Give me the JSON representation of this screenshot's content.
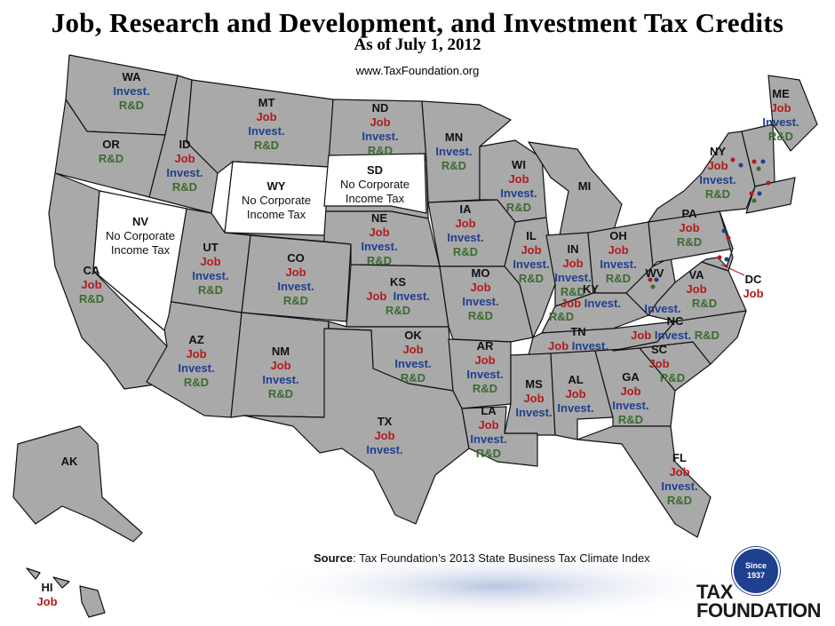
{
  "title": "Job, Research and Development, and Investment Tax Credits",
  "subtitle": "As of July 1, 2012",
  "website": "www.TaxFoundation.org",
  "source_label": "Source",
  "source_text": ": Tax Foundation’s 2013 State Business Tax Climate Index",
  "logo": {
    "seal_line1": "Since",
    "seal_line2": "1937",
    "word1": "TAX",
    "word2": "FOUNDATION"
  },
  "colors": {
    "job": "#b31b1b",
    "invest": "#1f3f8f",
    "rd": "#3b6b2f",
    "state_fill": "#a9a9a9",
    "no_tax_fill": "#ffffff"
  },
  "states": {
    "WA": {
      "abbr": "WA",
      "c1": "Invest.",
      "c2": "R&D"
    },
    "OR": {
      "abbr": "OR",
      "c1": "R&D"
    },
    "CA": {
      "abbr": "CA",
      "c1": "Job",
      "c2": "R&D"
    },
    "NV": {
      "abbr": "NV",
      "n1": "No Corporate",
      "n2": "Income Tax"
    },
    "ID": {
      "abbr": "ID",
      "c1": "Job",
      "c2": "Invest.",
      "c3": "R&D"
    },
    "MT": {
      "abbr": "MT",
      "c1": "Job",
      "c2": "Invest.",
      "c3": "R&D"
    },
    "WY": {
      "abbr": "WY",
      "n1": "No Corporate",
      "n2": "Income Tax"
    },
    "UT": {
      "abbr": "UT",
      "c1": "Job",
      "c2": "Invest.",
      "c3": "R&D"
    },
    "AZ": {
      "abbr": "AZ",
      "c1": "Job",
      "c2": "Invest.",
      "c3": "R&D"
    },
    "CO": {
      "abbr": "CO",
      "c1": "Job",
      "c2": "Invest.",
      "c3": "R&D"
    },
    "NM": {
      "abbr": "NM",
      "c1": "Job",
      "c2": "Invest.",
      "c3": "R&D"
    },
    "ND": {
      "abbr": "ND",
      "c1": "Job",
      "c2": "Invest.",
      "c3": "R&D"
    },
    "SD": {
      "abbr": "SD",
      "n1": "No Corporate",
      "n2": "Income Tax"
    },
    "NE": {
      "abbr": "NE",
      "c1": "Job",
      "c2": "Invest.",
      "c3": "R&D"
    },
    "KS": {
      "abbr": "KS",
      "c1": "Job",
      "c2": "Invest.",
      "c3": "R&D"
    },
    "OK": {
      "abbr": "OK",
      "c1": "Job",
      "c2": "Invest.",
      "c3": "R&D"
    },
    "TX": {
      "abbr": "TX",
      "c1": "Job",
      "c2": "Invest."
    },
    "MN": {
      "abbr": "MN",
      "c1": "Invest.",
      "c2": "R&D"
    },
    "IA": {
      "abbr": "IA",
      "c1": "Job",
      "c2": "Invest.",
      "c3": "R&D"
    },
    "MO": {
      "abbr": "MO",
      "c1": "Job",
      "c2": "Invest.",
      "c3": "R&D"
    },
    "AR": {
      "abbr": "AR",
      "c1": "Job",
      "c2": "Invest.",
      "c3": "R&D"
    },
    "LA": {
      "abbr": "LA",
      "c1": "Job",
      "c2": "Invest.",
      "c3": "R&D"
    },
    "WI": {
      "abbr": "WI",
      "c1": "Job",
      "c2": "Invest.",
      "c3": "R&D"
    },
    "IL": {
      "abbr": "IL",
      "c1": "Job",
      "c2": "Invest.",
      "c3": "R&D"
    },
    "MI": {
      "abbr": "MI"
    },
    "IN": {
      "abbr": "IN",
      "c1": "Job",
      "c2": "Invest.",
      "c3": "R&D"
    },
    "OH": {
      "abbr": "OH",
      "c1": "Job",
      "c2": "Invest.",
      "c3": "R&D"
    },
    "KY": {
      "abbr": "KY",
      "c1": "Job",
      "c2": "Invest.",
      "c3": "R&D"
    },
    "TN": {
      "abbr": "TN",
      "c1": "Job",
      "c2": "Invest."
    },
    "MS": {
      "abbr": "MS",
      "c1": "Job",
      "c2": "Invest."
    },
    "AL": {
      "abbr": "AL",
      "c1": "Job",
      "c2": "Invest."
    },
    "GA": {
      "abbr": "GA",
      "c1": "Job",
      "c2": "Invest.",
      "c3": "R&D"
    },
    "FL": {
      "abbr": "FL",
      "c1": "Job",
      "c2": "Invest.",
      "c3": "R&D"
    },
    "SC": {
      "abbr": "SC",
      "c1": "Job",
      "c2": "R&D"
    },
    "NC": {
      "abbr": "NC",
      "c1": "Job",
      "c2": "Invest.",
      "c3": "R&D"
    },
    "VA": {
      "abbr": "VA",
      "c1": "Job",
      "c2": "R&D"
    },
    "WV": {
      "abbr": "WV",
      "c1": "Invest."
    },
    "PA": {
      "abbr": "PA",
      "c1": "Job",
      "c2": "R&D"
    },
    "NY": {
      "abbr": "NY",
      "c1": "Job",
      "c2": "Invest.",
      "c3": "R&D"
    },
    "ME": {
      "abbr": "ME",
      "c1": "Job",
      "c2": "Invest.",
      "c3": "R&D"
    },
    "DC": {
      "abbr": "DC",
      "c1": "Job"
    },
    "AK": {
      "abbr": "AK"
    },
    "HI": {
      "abbr": "HI",
      "c1": "Job"
    }
  }
}
